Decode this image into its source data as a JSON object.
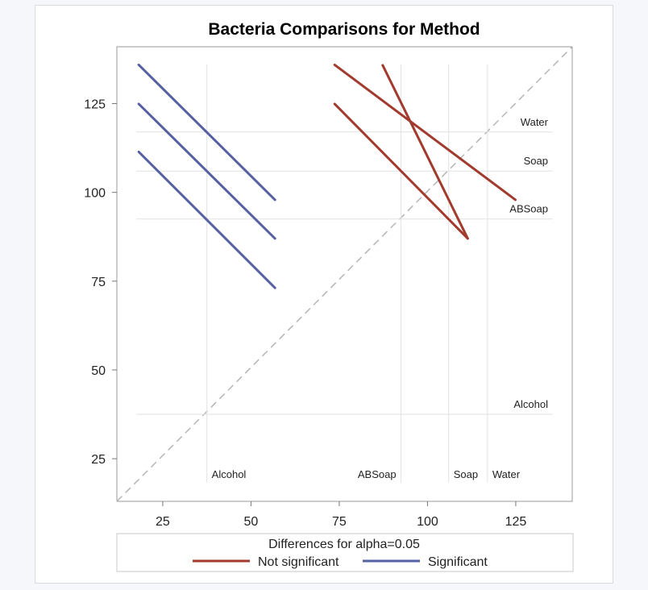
{
  "chart_data": {
    "type": "line",
    "title": "Bacteria Comparisons for Method",
    "xlim": [
      12,
      141
    ],
    "ylim": [
      13,
      141
    ],
    "x_ticks": [
      25,
      50,
      75,
      100,
      125
    ],
    "y_ticks": [
      25,
      50,
      75,
      100,
      125
    ],
    "diagonal_reference": true,
    "categories_x": [
      {
        "label": "Alcohol",
        "value": 37.5
      },
      {
        "label": "ABSoap",
        "value": 92.5
      },
      {
        "label": "Soap",
        "value": 106.0
      },
      {
        "label": "Water",
        "value": 117.0
      }
    ],
    "categories_y": [
      {
        "label": "Water",
        "value": 117.0
      },
      {
        "label": "Soap",
        "value": 106.0
      },
      {
        "label": "ABSoap",
        "value": 92.5
      },
      {
        "label": "Alcohol",
        "value": 37.5
      }
    ],
    "series": [
      {
        "name": "Not significant",
        "color": "#a23a2e",
        "segments": [
          {
            "x": [
              73.7,
              124.9
            ],
            "y": [
              135.9,
              97.9
            ]
          },
          {
            "x": [
              87.3,
              111.4
            ],
            "y": [
              135.8,
              87.0
            ]
          },
          {
            "x": [
              73.7,
              111.4
            ],
            "y": [
              124.9,
              87.0
            ]
          }
        ]
      },
      {
        "name": "Significant",
        "color": "#5561a2",
        "segments": [
          {
            "x": [
              18.2,
              56.8
            ],
            "y": [
              135.9,
              97.9
            ]
          },
          {
            "x": [
              18.2,
              56.8
            ],
            "y": [
              124.9,
              87.0
            ]
          },
          {
            "x": [
              18.2,
              56.8
            ],
            "y": [
              111.4,
              73.1
            ]
          }
        ]
      }
    ],
    "legend": {
      "title": "Differences for alpha=0.05",
      "placement": "bottom"
    }
  }
}
